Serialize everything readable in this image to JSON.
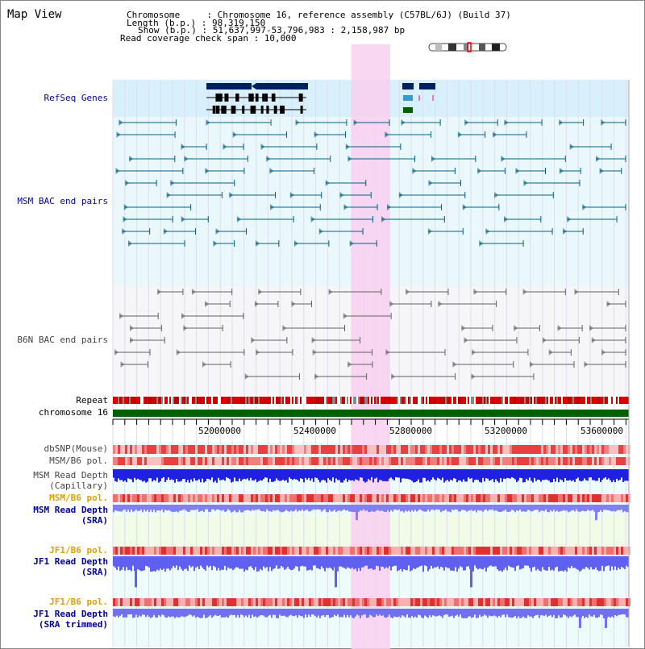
{
  "header": {
    "title": "Map View",
    "chromosome": "Chromosome     : Chromosome 16, reference assembly (C57BL/6J) (Build 37)",
    "length": "Length (b.p.) : 98,319,150",
    "show": "Show (b.p.) : 51,637,997-53,796,983 : 2,158,987 bp",
    "coverage": "Read coverage check span : 10,000"
  },
  "tracks": {
    "refseq": "RefSeq Genes",
    "msm_bac": "MSM BAC end pairs",
    "b6n_bac": "B6N BAC end pairs",
    "repeat": "Repeat",
    "chromosome": "chromosome 16",
    "dbsnp": "dbSNP(Mouse)",
    "msm_b6_pol": "MSM/B6 pol.",
    "msm_read_cap_1": "MSM Read Depth",
    "msm_read_cap_2": "(Capillary)",
    "msm_b6_pol_2": "MSM/B6 pol.",
    "msm_sra_1": "MSM Read Depth",
    "msm_sra_2": "(SRA)",
    "jf1_pol": "JF1/B6 pol.",
    "jf1_sra_1": "JF1 Read Depth",
    "jf1_sra_2": "(SRA)",
    "jf1_pol_2": "JF1/B6 pol.",
    "jf1_trim_1": "JF1 Read Depth",
    "jf1_trim_2": "(SRA trimmed)"
  },
  "axis": {
    "ticks": [
      "52000000",
      "52400000",
      "52800000",
      "53200000",
      "53600000"
    ]
  },
  "colors": {
    "label_blue": "#0000a0",
    "label_gray": "#444444",
    "label_orange": "#e0a000",
    "highlight": "#f8d0f0",
    "msm_line": "#006080",
    "b6n_line": "#606060"
  }
}
